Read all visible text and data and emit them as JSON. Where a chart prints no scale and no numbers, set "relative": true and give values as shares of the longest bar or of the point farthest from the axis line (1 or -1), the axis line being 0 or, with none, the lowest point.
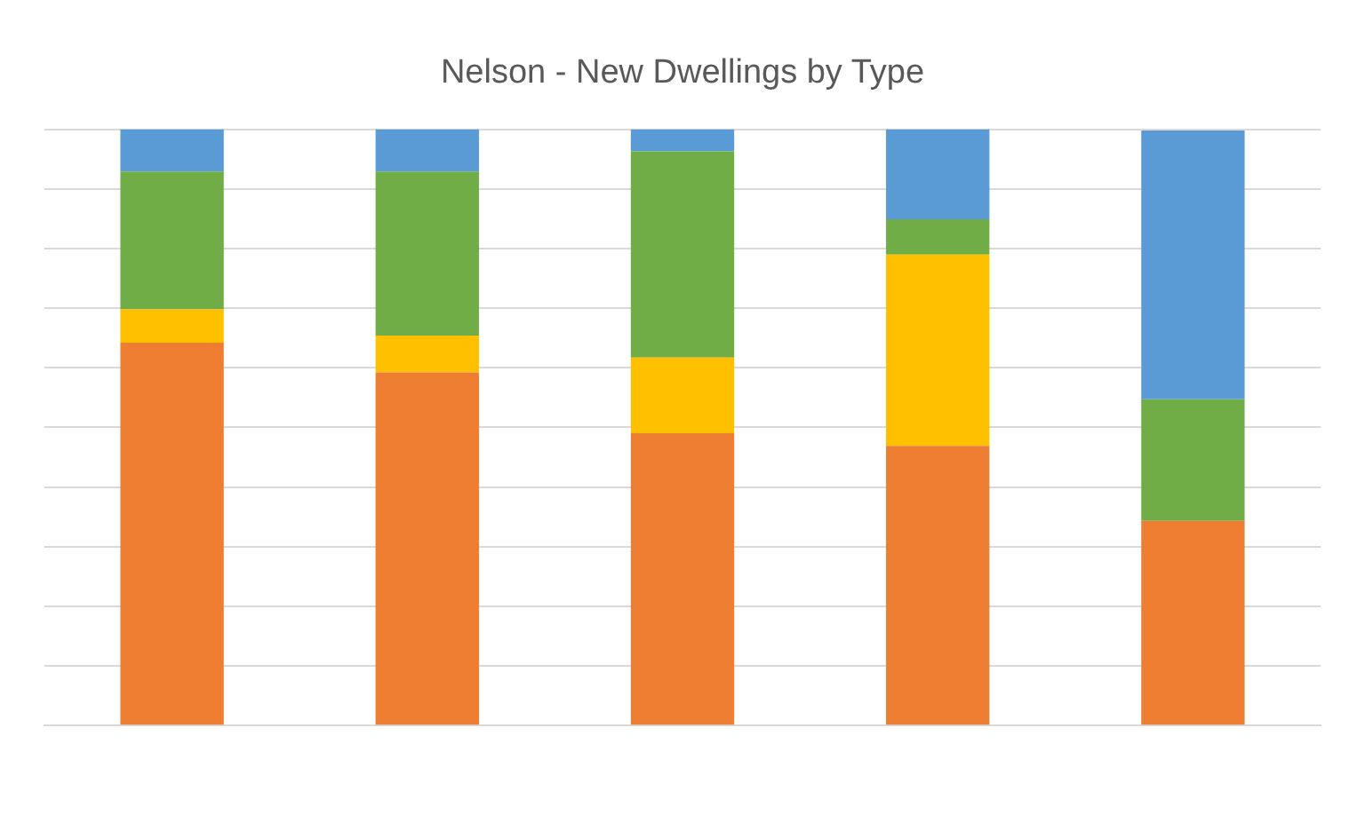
{
  "chart_data": {
    "type": "bar",
    "title": "Nelson - New Dwellings by Type",
    "categories": [
      null,
      null,
      null,
      null,
      null
    ],
    "stacked": true,
    "relative": true,
    "grid": "y",
    "legend": false,
    "series": [
      {
        "color": "#ed7d31",
        "values": [
          0.642,
          0.592,
          0.49,
          0.469,
          0.343
        ]
      },
      {
        "color": "#ffc000",
        "values": [
          0.056,
          0.062,
          0.127,
          0.321,
          0
        ]
      },
      {
        "color": "#70ad47",
        "values": [
          0.231,
          0.275,
          0.346,
          0.059,
          0.204
        ]
      },
      {
        "color": "#5b9bd5",
        "values": [
          0.071,
          0.071,
          0.037,
          0.151,
          0.451
        ]
      }
    ]
  }
}
